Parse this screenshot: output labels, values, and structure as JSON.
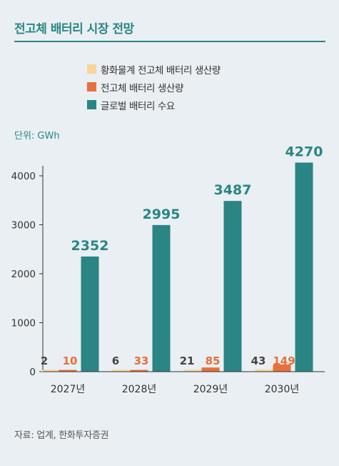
{
  "title": "전고체 배터리 시장 전망",
  "unit": "단위: GWh",
  "source": "자료: 업계, 한화투자증권",
  "colors": {
    "accent": "#2a8584",
    "series": [
      "#f8d49a",
      "#e8703a",
      "#2a8584"
    ],
    "label_colors": [
      "#444444",
      "#e8703a",
      "#2a8584"
    ]
  },
  "chart_data": {
    "type": "bar",
    "categories": [
      "2027년",
      "2028년",
      "2029년",
      "2030년"
    ],
    "series": [
      {
        "name": "황화물계 전고체 배터리 생산량",
        "values": [
          2,
          6,
          21,
          43
        ]
      },
      {
        "name": "전고체 배터리 생산량",
        "values": [
          10,
          33,
          85,
          149
        ]
      },
      {
        "name": "글로벌 배터리 수요",
        "values": [
          2352,
          2995,
          3487,
          4270
        ]
      }
    ],
    "y_ticks": [
      "0",
      "1000",
      "2000",
      "3000",
      "4000"
    ],
    "ylim": [
      0,
      4400
    ],
    "grid": false,
    "legend_position": "top-center"
  }
}
